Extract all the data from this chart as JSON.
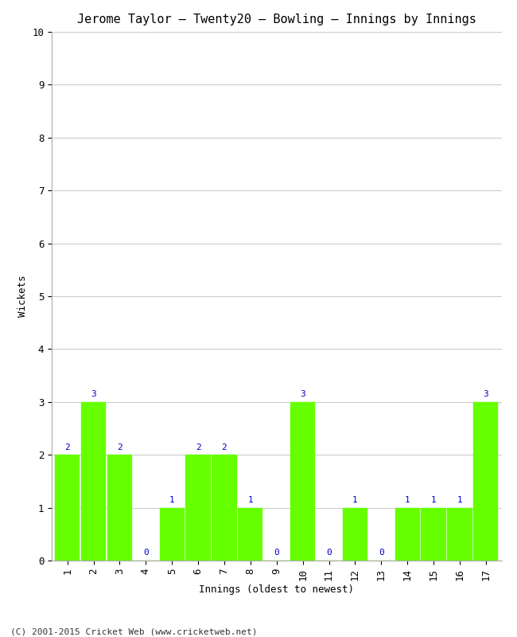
{
  "title": "Jerome Taylor – Twenty20 – Bowling – Innings by Innings",
  "xlabel": "Innings (oldest to newest)",
  "ylabel": "Wickets",
  "innings": [
    1,
    2,
    3,
    4,
    5,
    6,
    7,
    8,
    9,
    10,
    11,
    12,
    13,
    14,
    15,
    16,
    17
  ],
  "wickets": [
    2,
    3,
    2,
    0,
    1,
    2,
    2,
    1,
    0,
    3,
    0,
    1,
    0,
    1,
    1,
    1,
    3
  ],
  "bar_color": "#66ff00",
  "bar_edge_color": "#66ff00",
  "label_color": "#0000cc",
  "ylim": [
    0,
    10
  ],
  "yticks": [
    0,
    1,
    2,
    3,
    4,
    5,
    6,
    7,
    8,
    9,
    10
  ],
  "background_color": "#ffffff",
  "grid_color": "#cccccc",
  "title_fontsize": 11,
  "axis_label_fontsize": 9,
  "tick_fontsize": 9,
  "label_fontsize": 8,
  "footer": "(C) 2001-2015 Cricket Web (www.cricketweb.net)"
}
